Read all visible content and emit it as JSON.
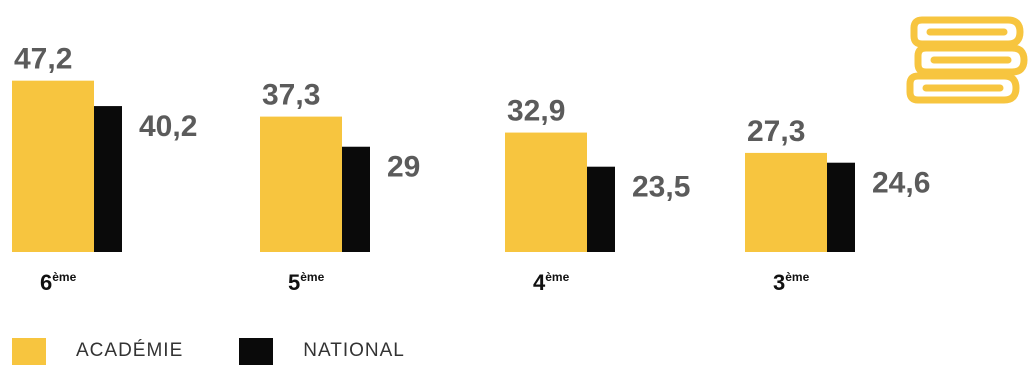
{
  "chart_data": {
    "type": "bar",
    "categories": [
      {
        "num": "6",
        "sup": "ème"
      },
      {
        "num": "5",
        "sup": "ème"
      },
      {
        "num": "4",
        "sup": "ème"
      },
      {
        "num": "3",
        "sup": "ème"
      }
    ],
    "series": [
      {
        "name": "ACADÉMIE",
        "color": "#f7c53f",
        "values": [
          47.2,
          37.3,
          32.9,
          27.3
        ],
        "labels": [
          "47,2",
          "37,3",
          "32,9",
          "27,3"
        ]
      },
      {
        "name": "NATIONAL",
        "color": "#0a0a0a",
        "values": [
          40.2,
          29,
          23.5,
          24.6
        ],
        "labels": [
          "40,2",
          "29",
          "23,5",
          "24,6"
        ]
      }
    ],
    "ylim": [
      0,
      50
    ],
    "grid": false,
    "axes_visible": false,
    "legend_position": "bottom-left",
    "title": "",
    "xlabel": "",
    "ylabel": ""
  },
  "colors": {
    "academie": "#f7c53f",
    "national": "#0a0a0a",
    "value_label": "#5b5b5b"
  },
  "icons": {
    "books": "books-stack-icon"
  }
}
